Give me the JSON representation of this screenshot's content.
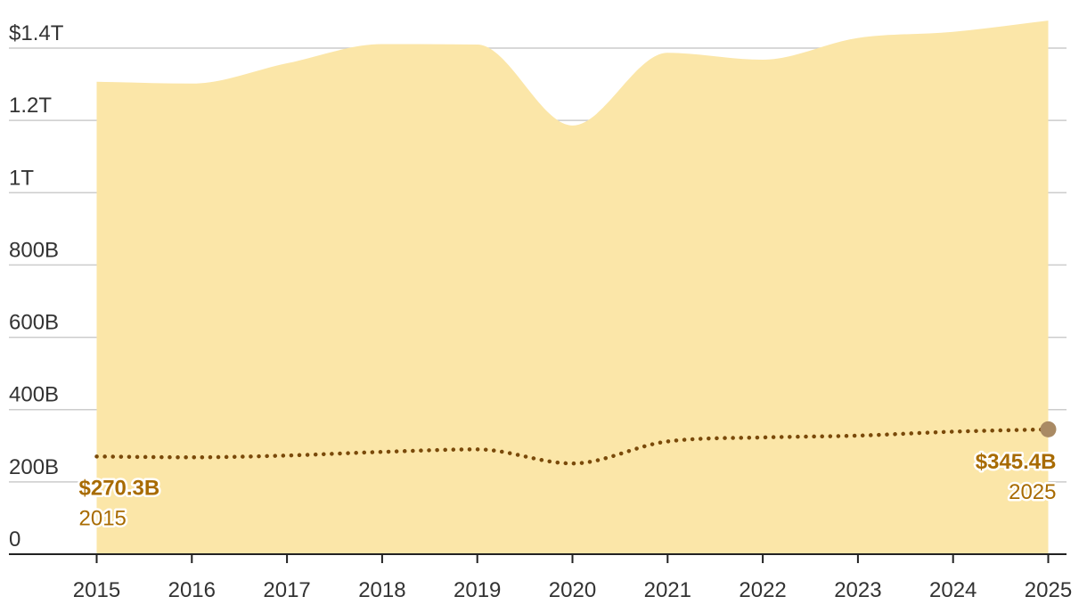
{
  "chart_data": {
    "type": "area",
    "x": [
      2015,
      2016,
      2017,
      2018,
      2019,
      2020,
      2021,
      2022,
      2023,
      2024,
      2025
    ],
    "series": [
      {
        "values": [
          1307,
          1302,
          1358,
          1411,
          1410,
          1186,
          1387,
          1368,
          1428,
          1445,
          1476
        ],
        "color": "#fbe6a8",
        "style": "area"
      },
      {
        "values": [
          270.3,
          268,
          273,
          283,
          290,
          251,
          312,
          323,
          328,
          339,
          345.4
        ],
        "color": "#7a4a0a",
        "style": "dotted-line"
      }
    ],
    "ylim": [
      0,
      1400
    ],
    "xlim": [
      2015,
      2025
    ],
    "y_ticks": [
      {
        "value": 0,
        "label": "0"
      },
      {
        "value": 200,
        "label": "200B"
      },
      {
        "value": 400,
        "label": "400B"
      },
      {
        "value": 600,
        "label": "600B"
      },
      {
        "value": 800,
        "label": "800B"
      },
      {
        "value": 1000,
        "label": "1T"
      },
      {
        "value": 1200,
        "label": "1.2T"
      },
      {
        "value": 1400,
        "label": "$1.4T"
      }
    ],
    "x_ticks": [
      "2015",
      "2016",
      "2017",
      "2018",
      "2019",
      "2020",
      "2021",
      "2022",
      "2023",
      "2024",
      "2025"
    ],
    "grid": true,
    "annotations": [
      {
        "id": "start",
        "value_label": "$270.3B",
        "year_label": "2015",
        "x": 2015,
        "y": 270.3,
        "anchor": "start"
      },
      {
        "id": "end",
        "value_label": "$345.4B",
        "year_label": "2025",
        "x": 2025,
        "y": 345.4,
        "anchor": "end"
      }
    ],
    "colors": {
      "area": "#fbe6a8",
      "line": "#7a4a0a",
      "annotation_text": "#a86b00",
      "end_marker": "#a98a64",
      "grid": "#cccccc",
      "axis": "#222222"
    }
  }
}
